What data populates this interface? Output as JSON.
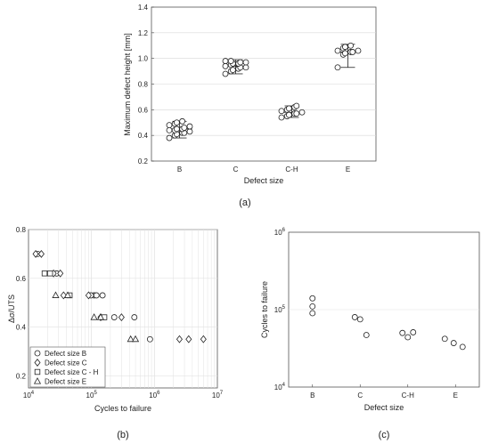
{
  "panels": {
    "a": {
      "caption": "(a)",
      "xlabel": "Defect size",
      "ylabel": "Maximum defect height [mm]",
      "categories": [
        "B",
        "C",
        "C-H",
        "E"
      ],
      "yticks": [
        "0.2",
        "0.4",
        "0.6",
        "0.8",
        "1.0",
        "1.2",
        "1.4"
      ]
    },
    "b": {
      "caption": "(b)",
      "xlabel": "Cycles to failure",
      "ylabel": "Δσ/UTS",
      "yticks": [
        "0.2",
        "0.4",
        "0.6",
        "0.8"
      ],
      "legend": [
        "Defect size B",
        "Defect size C",
        "Defect size C - H",
        "Defect size E"
      ]
    },
    "c": {
      "caption": "(c)",
      "xlabel": "Defect size",
      "ylabel": "Cycles to failure",
      "categories": [
        "B",
        "C",
        "C-H",
        "E"
      ]
    }
  },
  "chart_data": [
    {
      "type": "scatter",
      "xlabel": "Defect size",
      "ylabel": "Maximum defect height [mm]",
      "ylim": [
        0.2,
        1.4
      ],
      "grid": true,
      "categories": [
        "B",
        "C",
        "C-H",
        "E"
      ],
      "series": [
        {
          "category": "B",
          "values": [
            0.38,
            0.4,
            0.41,
            0.42,
            0.42,
            0.43,
            0.44,
            0.44,
            0.45,
            0.45,
            0.46,
            0.47,
            0.48,
            0.49,
            0.5,
            0.51
          ],
          "mean": 0.45,
          "error": [
            0.38,
            0.51
          ]
        },
        {
          "category": "C",
          "values": [
            0.88,
            0.9,
            0.91,
            0.92,
            0.93,
            0.93,
            0.94,
            0.95,
            0.96,
            0.96,
            0.97,
            0.97,
            0.98,
            0.98
          ],
          "mean": 0.94,
          "error": [
            0.88,
            0.99
          ]
        },
        {
          "category": "C-H",
          "values": [
            0.54,
            0.55,
            0.56,
            0.57,
            0.57,
            0.58,
            0.59,
            0.6,
            0.61,
            0.62,
            0.63
          ],
          "mean": 0.58,
          "error": [
            0.54,
            0.63
          ]
        },
        {
          "category": "E",
          "values": [
            0.93,
            1.03,
            1.04,
            1.05,
            1.05,
            1.06,
            1.06,
            1.08,
            1.09,
            1.1
          ],
          "mean": 1.05,
          "error": [
            0.93,
            1.11
          ]
        }
      ]
    },
    {
      "type": "scatter",
      "xlabel": "Cycles to failure",
      "ylabel": "Δσ/UTS",
      "xscale": "log",
      "xlim": [
        10000,
        10000000
      ],
      "ylim": [
        0.15,
        0.8
      ],
      "grid": true,
      "legend_position": "bottom-left",
      "series": [
        {
          "name": "Defect size B",
          "marker": "circle",
          "points": [
            [
              14000,
              0.7
            ],
            [
              28000,
              0.62
            ],
            [
              110000,
              0.53
            ],
            [
              150000,
              0.53
            ],
            [
              230000,
              0.44
            ],
            [
              480000,
              0.44
            ],
            [
              850000,
              0.35
            ],
            [
              98000,
              0.53
            ],
            [
              120000,
              0.53
            ]
          ]
        },
        {
          "name": "Defect size C",
          "marker": "diamond",
          "points": [
            [
              13000,
              0.7
            ],
            [
              16000,
              0.7
            ],
            [
              25000,
              0.62
            ],
            [
              32000,
              0.62
            ],
            [
              36000,
              0.53
            ],
            [
              90000,
              0.53
            ],
            [
              140000,
              0.44
            ],
            [
              300000,
              0.44
            ],
            [
              2500000,
              0.35
            ],
            [
              3500000,
              0.35
            ],
            [
              6000000,
              0.35
            ]
          ]
        },
        {
          "name": "Defect size C - H",
          "marker": "square",
          "points": [
            [
              18000,
              0.62
            ],
            [
              22000,
              0.62
            ],
            [
              45000,
              0.53
            ],
            [
              160000,
              0.44
            ]
          ]
        },
        {
          "name": "Defect size E",
          "marker": "triangle",
          "points": [
            [
              27000,
              0.53
            ],
            [
              42000,
              0.53
            ],
            [
              110000,
              0.44
            ],
            [
              140000,
              0.44
            ],
            [
              420000,
              0.35
            ],
            [
              500000,
              0.35
            ]
          ]
        }
      ]
    },
    {
      "type": "scatter",
      "xlabel": "Defect size",
      "ylabel": "Cycles to failure",
      "yscale": "log",
      "ylim": [
        10000,
        1000000
      ],
      "grid": true,
      "categories": [
        "B",
        "C",
        "C-H",
        "E"
      ],
      "series": [
        {
          "category": "B",
          "values": [
            140000,
            110000,
            90000
          ]
        },
        {
          "category": "C",
          "values": [
            80000,
            75000,
            47000
          ]
        },
        {
          "category": "C-H",
          "values": [
            50000,
            44000,
            51000
          ]
        },
        {
          "category": "E",
          "values": [
            42000,
            37000,
            33000
          ]
        }
      ]
    }
  ]
}
